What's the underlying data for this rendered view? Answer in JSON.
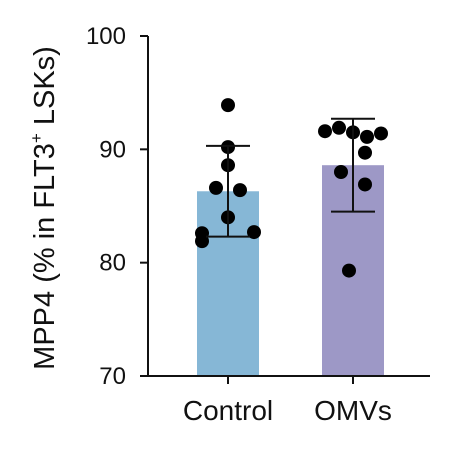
{
  "chart_data": {
    "type": "bar",
    "categories": [
      "Control",
      "OMVs"
    ],
    "ylabel": {
      "prefix": "MPP4 (% in FLT3",
      "superscript": "+",
      "suffix": " LSKs)"
    },
    "ylim": [
      70,
      100
    ],
    "yticks": [
      70,
      80,
      90,
      100
    ],
    "grid": false,
    "legend": "none",
    "series": [
      {
        "values": [
          86.3,
          88.6
        ],
        "error": [
          4.0,
          4.1
        ],
        "colors": [
          "#86b7d6",
          "#9d98c6"
        ]
      }
    ],
    "points": [
      [
        93.9,
        90.2,
        88.6,
        86.6,
        86.4,
        84.0,
        82.6,
        82.7,
        81.9
      ],
      [
        91.6,
        91.9,
        91.1,
        91.4,
        91.5,
        89.7,
        88.0,
        86.9,
        79.3
      ]
    ]
  }
}
